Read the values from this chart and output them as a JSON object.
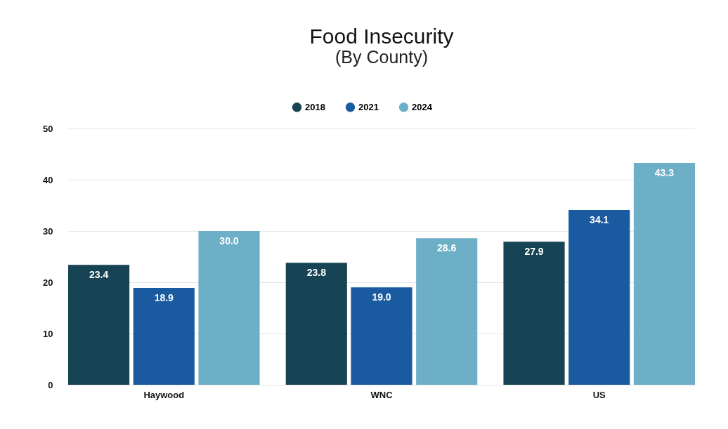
{
  "chart_data": {
    "type": "bar",
    "title": "Food Insecurity",
    "subtitle": "(By County)",
    "categories": [
      "Haywood",
      "WNC",
      "US"
    ],
    "series": [
      {
        "name": "2018",
        "color": "#174454",
        "values": [
          23.4,
          23.8,
          27.9
        ],
        "value_labels": [
          "23.4",
          "23.8",
          "27.9"
        ]
      },
      {
        "name": "2021",
        "color": "#1a5aa0",
        "values": [
          18.9,
          19.0,
          34.1
        ],
        "value_labels": [
          "18.9",
          "19.0",
          "34.1"
        ]
      },
      {
        "name": "2024",
        "color": "#6eafc8",
        "values": [
          30.0,
          28.6,
          43.3
        ],
        "value_labels": [
          "30.0",
          "28.6",
          "43.3"
        ]
      }
    ],
    "ylim": [
      0,
      50
    ],
    "yticks": [
      0,
      10,
      20,
      30,
      40,
      50
    ],
    "grid": "y",
    "legend": "top"
  }
}
